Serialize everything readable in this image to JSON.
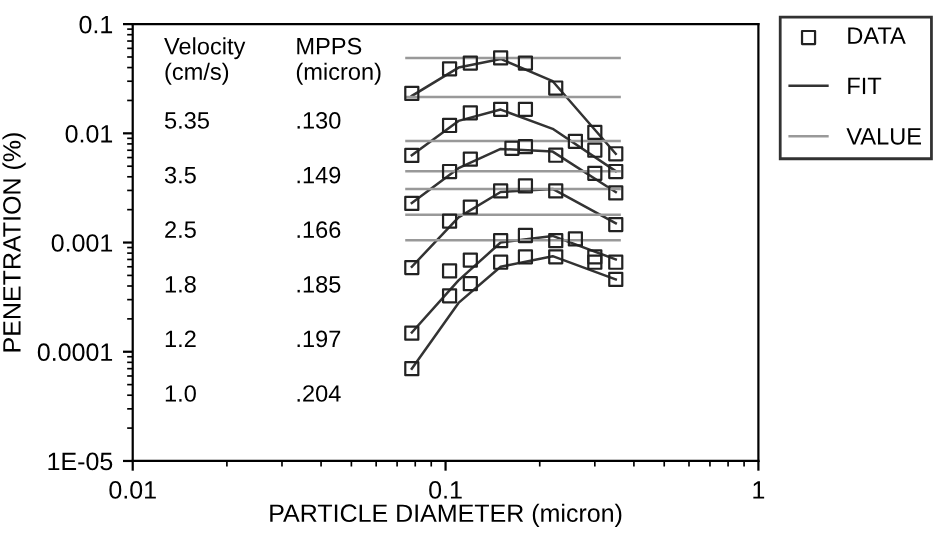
{
  "chart_data": {
    "type": "scatter",
    "log": "xy",
    "xlabel": "PARTICLE DIAMETER (micron)",
    "ylabel": "PENETRATION (%)",
    "xlim": [
      0.01,
      1
    ],
    "xticks": [
      0.01,
      0.1,
      1
    ],
    "ylim": [
      1e-05,
      0.1
    ],
    "yticks": [
      0.1,
      0.01,
      0.001,
      0.0001,
      {
        "value": 1e-05,
        "label": "1E-05"
      }
    ],
    "grid": false,
    "legend": "top right",
    "annotations": [
      "Velocity\n(cm/s)",
      "MPPS\n(micron)",
      "5.35",
      ".130",
      "3.5",
      ".149",
      "2.5",
      ".166",
      "1.8",
      ".185",
      "1.2",
      ".197",
      "1.0",
      ".204"
    ],
    "series": [
      {
        "name": "DATA",
        "marker": "square",
        "color": "#222222",
        "x": [
          0.078,
          0.103,
          0.12,
          0.15,
          0.18,
          0.225,
          0.3,
          0.35
        ],
        "values": [
          0.0232,
          0.039,
          0.044,
          0.049,
          0.044,
          0.026,
          0.0102,
          0.0065
        ]
      },
      {
        "marker": "square",
        "color": "#222222",
        "x": [
          0.078,
          0.103,
          0.12,
          0.15,
          0.18,
          0.26,
          0.3,
          0.35
        ],
        "values": [
          0.00627,
          0.0118,
          0.0154,
          0.0166,
          0.0166,
          0.00845,
          0.007,
          0.00447
        ]
      },
      {
        "marker": "square",
        "color": "#222222",
        "x": [
          0.078,
          0.103,
          0.12,
          0.163,
          0.18,
          0.225,
          0.3,
          0.35
        ],
        "values": [
          0.00228,
          0.00447,
          0.0058,
          0.0073,
          0.00755,
          0.0063,
          0.0043,
          0.00285
        ]
      },
      {
        "marker": "square",
        "color": "#222222",
        "x": [
          0.078,
          0.103,
          0.12,
          0.15,
          0.18,
          0.225,
          0.35
        ],
        "values": [
          0.00059,
          0.00157,
          0.00211,
          0.00297,
          0.0033,
          0.00297,
          0.00146
        ]
      },
      {
        "marker": "square",
        "color": "#222222",
        "x": [
          0.078,
          0.103,
          0.12,
          0.15,
          0.18,
          0.225,
          0.26,
          0.3,
          0.35
        ],
        "values": [
          0.000148,
          0.00055,
          0.00069,
          0.00104,
          0.00116,
          0.00104,
          0.00108,
          0.00066,
          0.00066
        ]
      },
      {
        "marker": "square",
        "color": "#222222",
        "x": [
          0.078,
          0.103,
          0.12,
          0.15,
          0.18,
          0.225,
          0.3,
          0.35
        ],
        "values": [
          7e-05,
          0.000325,
          0.00042,
          0.00066,
          0.00074,
          0.00074,
          0.00074,
          0.00046
        ]
      },
      {
        "name": "FIT",
        "type": "line",
        "marker": "none",
        "line_style": "solid",
        "color": "#333333",
        "x": [
          0.078,
          0.11,
          0.15,
          0.22,
          0.35
        ],
        "values": [
          0.022,
          0.04,
          0.048,
          0.03,
          0.0065
        ]
      },
      {
        "type": "line",
        "marker": "none",
        "line_style": "solid",
        "color": "#333333",
        "x": [
          0.078,
          0.11,
          0.15,
          0.22,
          0.35
        ],
        "values": [
          0.0063,
          0.013,
          0.0165,
          0.011,
          0.0045
        ]
      },
      {
        "type": "line",
        "marker": "none",
        "line_style": "solid",
        "color": "#333333",
        "x": [
          0.078,
          0.11,
          0.15,
          0.22,
          0.35
        ],
        "values": [
          0.0023,
          0.0048,
          0.0072,
          0.0068,
          0.0029
        ]
      },
      {
        "type": "line",
        "marker": "none",
        "line_style": "solid",
        "color": "#333333",
        "x": [
          0.078,
          0.11,
          0.15,
          0.22,
          0.35
        ],
        "values": [
          0.0006,
          0.0017,
          0.0029,
          0.0031,
          0.0015
        ]
      },
      {
        "type": "line",
        "marker": "none",
        "line_style": "solid",
        "color": "#333333",
        "x": [
          0.078,
          0.11,
          0.15,
          0.22,
          0.35
        ],
        "values": [
          0.00015,
          0.00045,
          0.001,
          0.00115,
          0.0007
        ]
      },
      {
        "type": "line",
        "marker": "none",
        "line_style": "solid",
        "color": "#333333",
        "x": [
          0.078,
          0.11,
          0.15,
          0.22,
          0.35
        ],
        "values": [
          7e-05,
          0.00028,
          0.0006,
          0.00075,
          0.00046
        ]
      },
      {
        "name": "VALUE",
        "type": "line",
        "marker": "none",
        "line_style": "solid",
        "color": "#999999",
        "x": [
          0.075,
          0.36
        ],
        "values": [
          0.049,
          0.049
        ]
      },
      {
        "type": "line",
        "marker": "none",
        "line_style": "solid",
        "color": "#999999",
        "x": [
          0.075,
          0.36
        ],
        "values": [
          0.0215,
          0.0215
        ]
      },
      {
        "type": "line",
        "marker": "none",
        "line_style": "solid",
        "color": "#999999",
        "x": [
          0.075,
          0.36
        ],
        "values": [
          0.0085,
          0.0085
        ]
      },
      {
        "type": "line",
        "marker": "none",
        "line_style": "solid",
        "color": "#999999",
        "x": [
          0.075,
          0.36
        ],
        "values": [
          0.0045,
          0.0045
        ]
      },
      {
        "type": "line",
        "marker": "none",
        "line_style": "solid",
        "color": "#999999",
        "x": [
          0.075,
          0.36
        ],
        "values": [
          0.0031,
          0.0031
        ]
      },
      {
        "type": "line",
        "marker": "none",
        "line_style": "solid",
        "color": "#999999",
        "x": [
          0.075,
          0.36
        ],
        "values": [
          0.0018,
          0.0018
        ]
      },
      {
        "type": "line",
        "marker": "none",
        "line_style": "solid",
        "color": "#999999",
        "x": [
          0.075,
          0.36
        ],
        "values": [
          0.00105,
          0.00105
        ]
      }
    ]
  }
}
